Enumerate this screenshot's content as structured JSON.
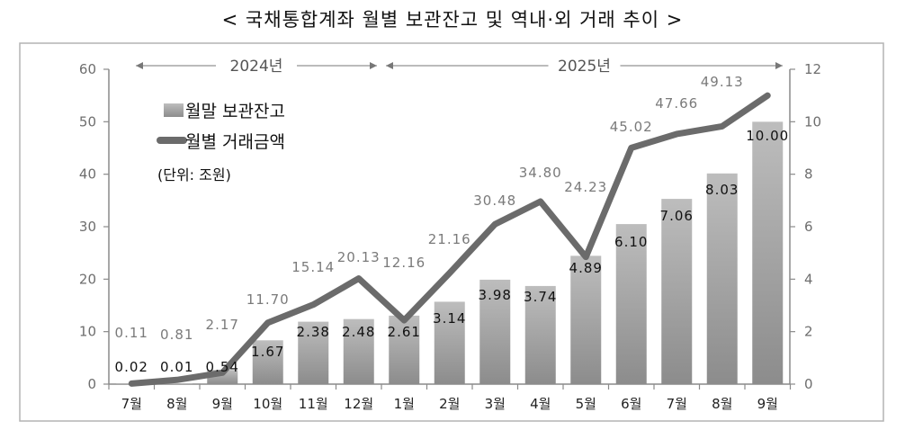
{
  "chart_data": {
    "type": "bar+line",
    "title": "< 국채통합계좌 월별 보관잔고 및 역내·외 거래 추이 >",
    "categories": [
      "7월",
      "8월",
      "9월",
      "10월",
      "11월",
      "12월",
      "1월",
      "2월",
      "3월",
      "4월",
      "5월",
      "6월",
      "7월",
      "8월",
      "9월"
    ],
    "periods": [
      {
        "label": "2024년",
        "from": "7월",
        "to": "12월"
      },
      {
        "label": "2025년",
        "from": "1월",
        "to": "9월"
      }
    ],
    "series": [
      {
        "name": "월말 보관잔고",
        "kind": "bar",
        "axis": "right",
        "values": [
          0.02,
          0.01,
          0.54,
          1.67,
          2.38,
          2.48,
          2.61,
          3.14,
          3.98,
          3.74,
          4.89,
          6.1,
          7.06,
          8.03,
          10.0
        ],
        "labels": [
          "0.02",
          "0.01",
          "0.54",
          "1.67",
          "2.38",
          "2.48",
          "2.61",
          "3.14",
          "3.98",
          "3.74",
          "4.89",
          "6.10",
          "7.06",
          "8.03",
          "10.00"
        ]
      },
      {
        "name": "월별 거래금액",
        "kind": "line",
        "axis": "left",
        "values": [
          0.11,
          0.81,
          2.17,
          11.7,
          15.14,
          20.13,
          12.16,
          21.16,
          30.48,
          34.8,
          24.23,
          45.02,
          47.66,
          49.13,
          55.0
        ],
        "labels": [
          "0.11",
          "0.81",
          "2.17",
          "11.70",
          "15.14",
          "20.13",
          "12.16",
          "21.16",
          "30.48",
          "34.80",
          "24.23",
          "45.02",
          "47.66",
          "49.13",
          ""
        ]
      }
    ],
    "y_left": {
      "ylim": [
        0,
        60
      ],
      "ticks": [
        "0",
        "10",
        "20",
        "30",
        "40",
        "50",
        "60"
      ]
    },
    "y_right": {
      "ylim": [
        0,
        12
      ],
      "ticks": [
        "0",
        "2",
        "4",
        "6",
        "8",
        "10",
        "12"
      ]
    },
    "unit_note": "(단위: 조원)",
    "legend_position": "top-left",
    "colors": {
      "bar_top": "#bdbdbd",
      "bar_bottom": "#8c8c8c",
      "line": "#6b6b6b",
      "axis": "#8a8a8a",
      "frame": "#b3b3b3"
    }
  }
}
